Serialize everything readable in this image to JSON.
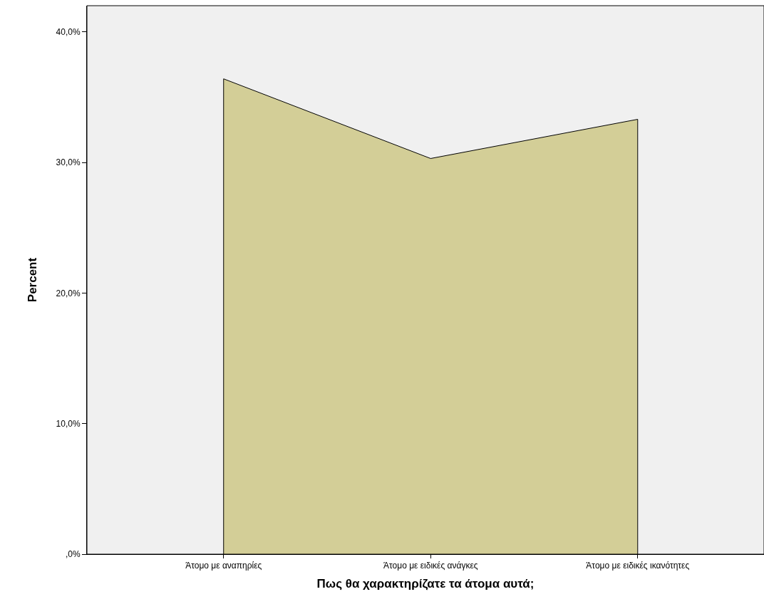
{
  "chart_data": {
    "type": "area",
    "xlabel": "Πως θα χαρακτηρίζατε τα άτομα αυτά;",
    "ylabel": "Percent",
    "categories": [
      "Άτομο με αναπηρίες",
      "Άτομο με ειδικές ανάγκες",
      "Άτομο με ειδικές ικανότητες"
    ],
    "values": [
      36.4,
      30.3,
      33.3
    ],
    "color": "#d3ce97",
    "ylim": [
      0,
      42
    ],
    "yticks": [
      {
        "value": 0,
        "label": ",0%"
      },
      {
        "value": 10,
        "label": "10,0%"
      },
      {
        "value": 20,
        "label": "20,0%"
      },
      {
        "value": 30,
        "label": "30,0%"
      },
      {
        "value": 40,
        "label": "40,0%"
      }
    ],
    "grid": false
  }
}
